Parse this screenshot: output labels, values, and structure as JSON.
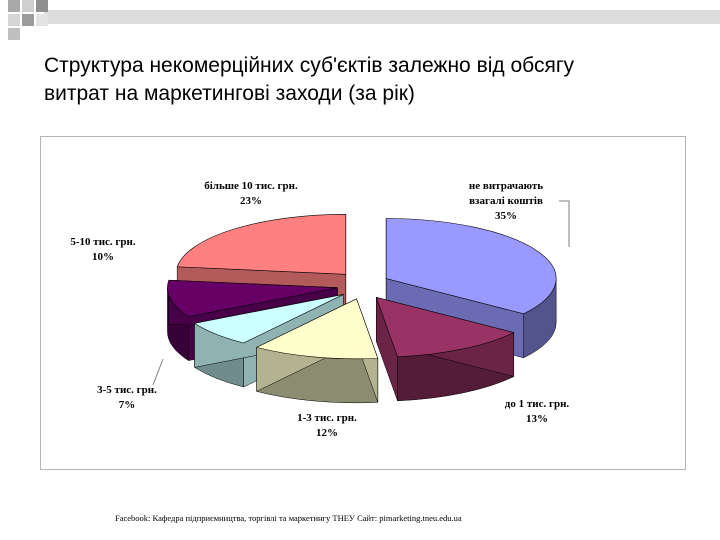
{
  "slide": {
    "title_line1": "Структура некомерційних суб'єктів залежно від обсягу",
    "title_line2": "витрат на маркетингові заходи (за рік)",
    "footer": "Facebook: Кафедра підприємництва, торгівлі та маркетингу ТНЕУ Сайт: pimarketing.tneu.edu.ua"
  },
  "chart_data": {
    "type": "pie",
    "three_d": true,
    "exploded": true,
    "categories": [
      "не витрачають взагалі коштів",
      "до 1 тис. грн.",
      "1-3 тис. грн.",
      "3-5 тис. грн.",
      "5-10 тис. грн.",
      "більше 10 тис. грн."
    ],
    "values": [
      35,
      13,
      12,
      7,
      10,
      23
    ],
    "labels": [
      [
        "не витрачають",
        "взагалі коштів",
        "35%"
      ],
      [
        "до 1 тис. грн.",
        "13%"
      ],
      [
        "1-3 тис. грн.",
        "12%"
      ],
      [
        "3-5 тис. грн.",
        "7%"
      ],
      [
        "5-10 тис. грн.",
        "10%"
      ],
      [
        "більше 10 тис. грн.",
        "23%"
      ]
    ],
    "colors": [
      "#9999ff",
      "#993366",
      "#ffffcc",
      "#ccffff",
      "#660066",
      "#ff8080"
    ],
    "legend": "none"
  }
}
